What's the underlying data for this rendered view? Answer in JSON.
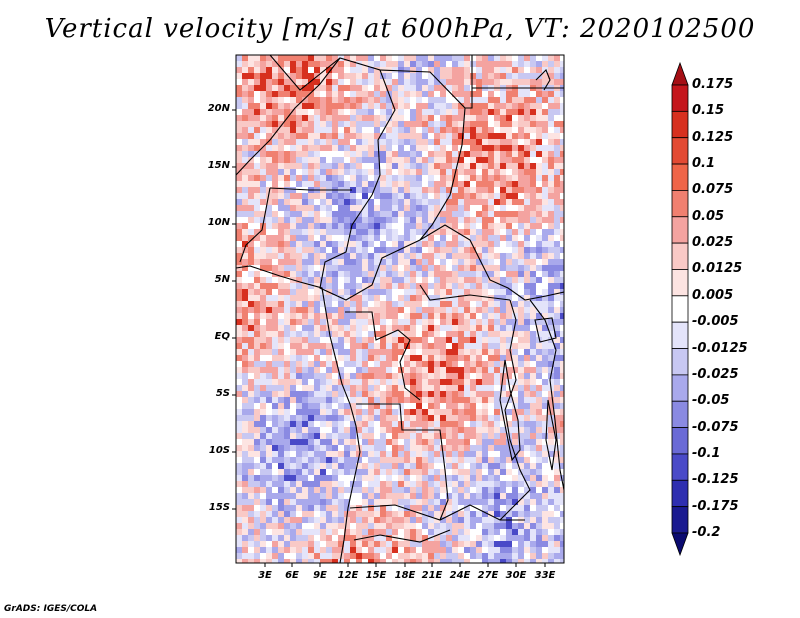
{
  "title": "Vertical velocity [m/s] at 600hPa, VT: 2020102500",
  "credit": "GrADS: IGES/COLA",
  "map": {
    "lat_labels": [
      "20N",
      "15N",
      "10N",
      "5N",
      "EQ",
      "5S",
      "10S",
      "15S"
    ],
    "lon_labels": [
      "3E",
      "6E",
      "9E",
      "12E",
      "15E",
      "18E",
      "21E",
      "24E",
      "27E",
      "30E",
      "33E"
    ]
  },
  "colorbar": {
    "labels": [
      "0.175",
      "0.15",
      "0.125",
      "0.1",
      "0.075",
      "0.05",
      "0.025",
      "0.0125",
      "0.005",
      "-0.005",
      "-0.0125",
      "-0.025",
      "-0.05",
      "-0.075",
      "-0.1",
      "-0.125",
      "-0.175",
      "-0.2"
    ],
    "colors": [
      "#a50f15",
      "#c4161c",
      "#d7301f",
      "#e34a33",
      "#ef6548",
      "#f08070",
      "#f4a3a0",
      "#f9c9c6",
      "#fde4e2",
      "#ffffff",
      "#e4e4fa",
      "#c8c8f2",
      "#a9a9ec",
      "#8a8ae2",
      "#6a6ad6",
      "#4a4ac8",
      "#2e2eb0",
      "#1a1a90",
      "#0a0a70"
    ]
  }
}
